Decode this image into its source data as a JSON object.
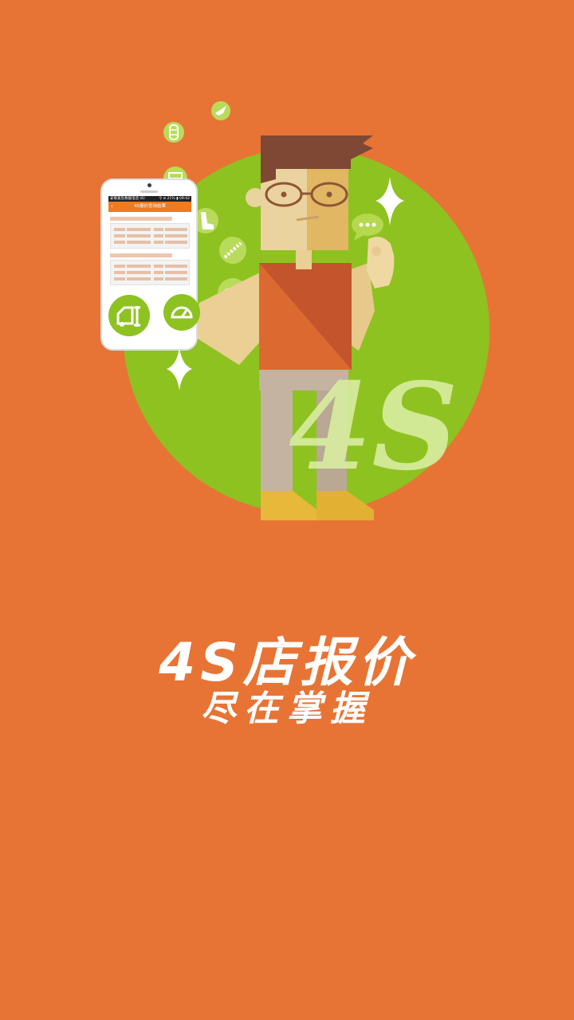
{
  "splash": {
    "headline": "4S店报价",
    "subline": "尽在掌握",
    "badge_text": "4S"
  },
  "phone": {
    "status_left": "安联紧急救援电话 (6)",
    "status_right": "⚲ ⊘ 21% ▮ 09:42",
    "back_glyph": "‹",
    "screen_title": "4S报价查询结果"
  },
  "icons": [
    "car-repair-icon",
    "speedometer-icon",
    "tire-icon",
    "car-door-icon",
    "car-seat-icon",
    "shock-absorber-icon",
    "wheel-fire-icon",
    "wing-icon",
    "chat-bubble-icon",
    "sparkle-icon"
  ],
  "colors": {
    "background": "#E77435",
    "circle_green": "#8EC220",
    "light_green": "#D7EC9E",
    "phone_header": "#F07A1E",
    "text": "#FFFFFF"
  }
}
